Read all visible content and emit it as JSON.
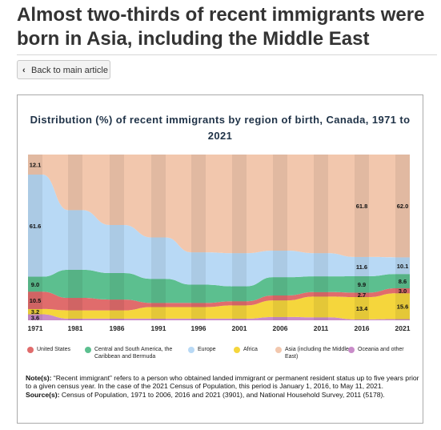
{
  "page": {
    "title": "Almost two-thirds of recent immigrants were born in Asia, including the Middle East",
    "back_button": "Back to main article"
  },
  "chart_data": {
    "type": "area",
    "title": "Distribution (%) of recent immigrants by region of birth, Canada, 1971 to 2021",
    "categories": [
      "1971",
      "1981",
      "1986",
      "1991",
      "1996",
      "2001",
      "2006",
      "2011",
      "2016",
      "2021"
    ],
    "ylim": [
      0,
      100
    ],
    "stacked": true,
    "series": [
      {
        "name": "United States",
        "color": "#e06c6c",
        "values": [
          10.5,
          7.5,
          6.5,
          2.5,
          2.5,
          2.5,
          3.0,
          2.7,
          2.7,
          3.0
        ]
      },
      {
        "name": "Central and South America, the Caribbean and Bermuda",
        "color": "#5cbf8f",
        "values": [
          9.0,
          17.0,
          16.0,
          14.5,
          11.0,
          9.0,
          11.0,
          9.5,
          9.9,
          8.6
        ]
      },
      {
        "name": "Europe",
        "color": "#b8d9f5",
        "values": [
          61.6,
          36.0,
          29.0,
          25.0,
          19.5,
          20.0,
          16.0,
          14.0,
          11.6,
          10.1
        ]
      },
      {
        "name": "Africa",
        "color": "#f5d63c",
        "values": [
          3.2,
          5.0,
          5.0,
          7.0,
          7.0,
          8.0,
          10.0,
          12.5,
          13.4,
          15.6
        ]
      },
      {
        "name": "Asia (including the Middle East)",
        "color": "#f2c7ad",
        "values": [
          12.1,
          33.5,
          42.5,
          50.0,
          59.0,
          59.5,
          58.0,
          59.5,
          61.8,
          62.0
        ]
      },
      {
        "name": "Oceania and other",
        "color": "#c98cc9",
        "values": [
          3.6,
          1.0,
          1.0,
          1.0,
          1.0,
          1.0,
          2.0,
          1.8,
          0.6,
          0.7
        ]
      }
    ],
    "data_labels": [
      {
        "text": "61.6",
        "category": "1971",
        "series": "Europe"
      },
      {
        "text": "12.1",
        "category": "1971",
        "series": "Asia (including the Middle East)"
      },
      {
        "text": "10.5",
        "category": "1971",
        "series": "United States"
      },
      {
        "text": "9.0",
        "category": "1971",
        "series": "Central and South America, the Caribbean and Bermuda"
      },
      {
        "text": "3.6",
        "category": "1971",
        "series": "Oceania and other"
      },
      {
        "text": "3.2",
        "category": "1971",
        "series": "Africa"
      },
      {
        "text": "61.8",
        "category": "2016",
        "series": "Asia (including the Middle East)"
      },
      {
        "text": "13.4",
        "category": "2016",
        "series": "Africa"
      },
      {
        "text": "11.6",
        "category": "2016",
        "series": "Europe"
      },
      {
        "text": "9.9",
        "category": "2016",
        "series": "Central and South America, the Caribbean and Bermuda"
      },
      {
        "text": "2.7",
        "category": "2016",
        "series": "United States"
      },
      {
        "text": "62.0",
        "category": "2021",
        "series": "Asia (including the Middle East)"
      },
      {
        "text": "15.6",
        "category": "2021",
        "series": "Africa"
      },
      {
        "text": "10.1",
        "category": "2021",
        "series": "Europe"
      },
      {
        "text": "8.6",
        "category": "2021",
        "series": "Central and South America, the Caribbean and Bermuda"
      },
      {
        "text": "3.0",
        "category": "2021",
        "series": "United States"
      }
    ],
    "legend": [
      {
        "label": "United States",
        "color": "#e06c6c"
      },
      {
        "label": "Central and South America, the Caribbean and Bermuda",
        "color": "#5cbf8f"
      },
      {
        "label": "Europe",
        "color": "#b8d9f5"
      },
      {
        "label": "Africa",
        "color": "#f5d63c"
      },
      {
        "label": "Asia (including the Middle East)",
        "color": "#f2c7ad"
      },
      {
        "label": "Oceania and other",
        "color": "#c98cc9"
      }
    ],
    "legend_position": "bottom",
    "grid": false
  },
  "notes": {
    "note_label": "Note(s):",
    "note_text": "“Recent immigrant” refers to a person who obtained landed immigrant or permanent resident status up to five years prior to a given census year. In the case of the 2021 Census of Population, this period is January 1, 2016, to May 11, 2021.",
    "source_label": "Source(s):",
    "source_text": "Census of Population, 1971 to 2006, 2016 and 2021 (3901), and National Household Survey, 2011 (5178)."
  }
}
